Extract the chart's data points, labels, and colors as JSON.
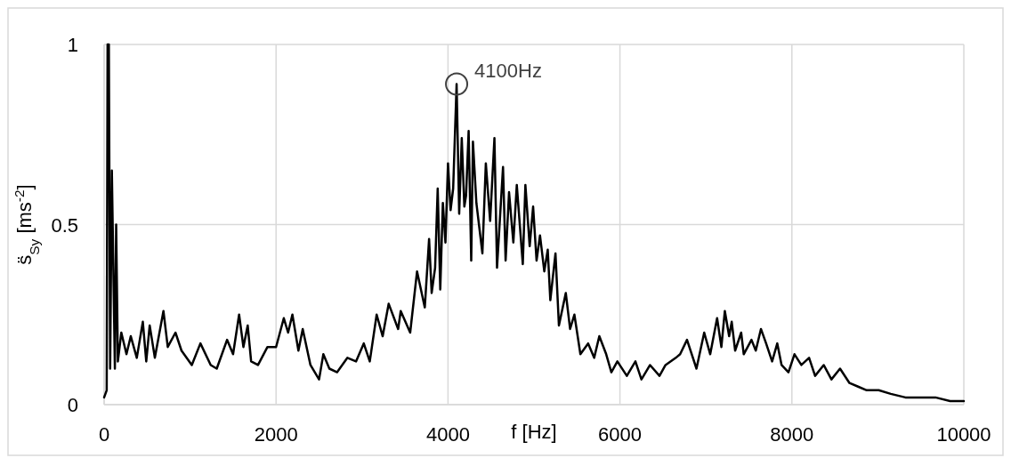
{
  "chart_data": {
    "type": "line",
    "xlabel": "f [Hz]",
    "ylabel": "s̈$_{Sy}$ [ms$^{-2}$]",
    "xlim": [
      0,
      10000
    ],
    "xticks": [
      0,
      2000,
      4000,
      6000,
      8000,
      10000
    ],
    "ylim": [
      0,
      1
    ],
    "yticks": [
      0,
      0.5,
      1
    ],
    "grid": true,
    "line_style": "solid",
    "annotations": [
      {
        "text": "4100Hz",
        "x": 4100,
        "y": 0.89
      }
    ],
    "series": [
      {
        "color": "#000000",
        "x": [
          0,
          30,
          40,
          55,
          70,
          90,
          125,
          140,
          160,
          200,
          260,
          310,
          380,
          450,
          490,
          530,
          590,
          690,
          740,
          830,
          900,
          1020,
          1120,
          1240,
          1310,
          1430,
          1500,
          1570,
          1620,
          1670,
          1710,
          1790,
          1900,
          2000,
          2090,
          2140,
          2190,
          2260,
          2310,
          2400,
          2500,
          2550,
          2620,
          2710,
          2830,
          2930,
          3020,
          3090,
          3170,
          3240,
          3310,
          3420,
          3450,
          3560,
          3640,
          3730,
          3780,
          3810,
          3850,
          3880,
          3910,
          3940,
          3970,
          4000,
          4030,
          4060,
          4100,
          4130,
          4160,
          4190,
          4210,
          4240,
          4270,
          4290,
          4330,
          4400,
          4440,
          4490,
          4540,
          4570,
          4640,
          4670,
          4710,
          4760,
          4800,
          4870,
          4900,
          4950,
          4990,
          5030,
          5070,
          5120,
          5160,
          5190,
          5250,
          5290,
          5370,
          5420,
          5470,
          5540,
          5630,
          5700,
          5760,
          5840,
          5900,
          5970,
          6080,
          6180,
          6250,
          6350,
          6460,
          6530,
          6650,
          6700,
          6780,
          6890,
          6980,
          7050,
          7130,
          7180,
          7220,
          7270,
          7300,
          7340,
          7410,
          7440,
          7530,
          7580,
          7640,
          7700,
          7770,
          7830,
          7880,
          7960,
          8030,
          8110,
          8200,
          8270,
          8370,
          8460,
          8560,
          8670,
          8770,
          8870,
          9010,
          9150,
          9320,
          9500,
          9670,
          9840,
          10000
        ],
        "values": [
          0.02,
          0.04,
          1,
          1,
          0.1,
          0.65,
          0.1,
          0.5,
          0.12,
          0.2,
          0.14,
          0.19,
          0.13,
          0.23,
          0.12,
          0.22,
          0.13,
          0.26,
          0.16,
          0.2,
          0.15,
          0.11,
          0.17,
          0.11,
          0.1,
          0.18,
          0.14,
          0.25,
          0.16,
          0.22,
          0.12,
          0.11,
          0.16,
          0.16,
          0.24,
          0.2,
          0.25,
          0.15,
          0.21,
          0.11,
          0.07,
          0.14,
          0.1,
          0.09,
          0.13,
          0.12,
          0.17,
          0.12,
          0.25,
          0.19,
          0.28,
          0.21,
          0.26,
          0.2,
          0.37,
          0.27,
          0.46,
          0.31,
          0.38,
          0.6,
          0.32,
          0.56,
          0.45,
          0.67,
          0.54,
          0.6,
          0.89,
          0.53,
          0.74,
          0.55,
          0.58,
          0.76,
          0.4,
          0.73,
          0.56,
          0.42,
          0.67,
          0.51,
          0.74,
          0.38,
          0.66,
          0.4,
          0.59,
          0.45,
          0.61,
          0.39,
          0.61,
          0.44,
          0.55,
          0.4,
          0.47,
          0.37,
          0.43,
          0.29,
          0.42,
          0.22,
          0.31,
          0.21,
          0.25,
          0.14,
          0.17,
          0.13,
          0.19,
          0.14,
          0.09,
          0.12,
          0.08,
          0.12,
          0.07,
          0.11,
          0.08,
          0.11,
          0.13,
          0.14,
          0.18,
          0.1,
          0.2,
          0.14,
          0.24,
          0.16,
          0.26,
          0.19,
          0.23,
          0.15,
          0.2,
          0.14,
          0.18,
          0.15,
          0.21,
          0.17,
          0.12,
          0.17,
          0.11,
          0.09,
          0.14,
          0.11,
          0.13,
          0.08,
          0.11,
          0.07,
          0.1,
          0.06,
          0.05,
          0.04,
          0.04,
          0.03,
          0.02,
          0.02,
          0.02,
          0.01,
          0.01
        ]
      }
    ]
  }
}
